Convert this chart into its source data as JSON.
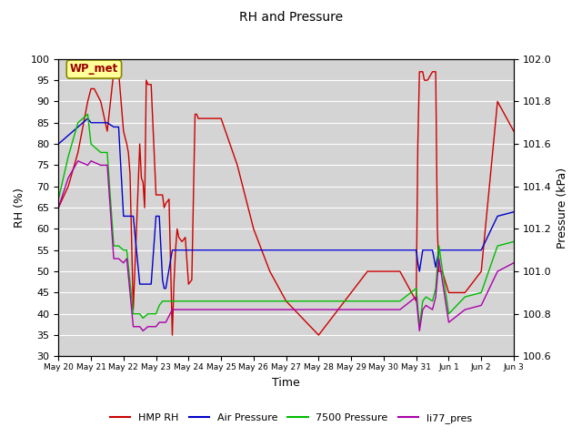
{
  "title": "RH and Pressure",
  "xlabel": "Time",
  "ylabel_left": "RH (%)",
  "ylabel_right": "Pressure (kPa)",
  "ylim_left": [
    30,
    100
  ],
  "ylim_right": [
    100.6,
    102.0
  ],
  "annotation_text": "WP_met",
  "fig_bg_color": "#ffffff",
  "plot_bg_color": "#d4d4d4",
  "grid_color": "#ffffff",
  "x_ticks": [
    "May 20",
    "May 21",
    "May 22",
    "May 23",
    "May 24",
    "May 25",
    "May 26",
    "May 27",
    "May 28",
    "May 29",
    "May 30",
    "May 31",
    "Jun 1",
    "Jun 2",
    "Jun 3"
  ],
  "hmp_rh": {
    "color": "#cc0000",
    "label": "HMP RH",
    "x": [
      0.0,
      0.3,
      0.6,
      0.9,
      1.0,
      1.1,
      1.3,
      1.5,
      1.7,
      1.85,
      2.0,
      2.1,
      2.15,
      2.2,
      2.3,
      2.4,
      2.5,
      2.55,
      2.6,
      2.65,
      2.7,
      2.75,
      2.85,
      3.0,
      3.1,
      3.15,
      3.2,
      3.25,
      3.3,
      3.4,
      3.5,
      3.55,
      3.6,
      3.65,
      3.7,
      3.8,
      3.9,
      4.0,
      4.1,
      4.2,
      4.25,
      4.3,
      4.5,
      5.0,
      5.5,
      6.0,
      6.5,
      7.0,
      7.5,
      8.0,
      8.5,
      9.0,
      9.5,
      10.0,
      10.5,
      11.0,
      11.05,
      11.1,
      11.15,
      11.2,
      11.25,
      11.3,
      11.35,
      11.5,
      11.6,
      11.65,
      11.7,
      11.8,
      12.0,
      12.2,
      12.5,
      13.0,
      13.5,
      14.0
    ],
    "y": [
      65,
      70,
      78,
      90,
      93,
      93,
      90,
      83,
      97,
      97,
      83,
      80,
      78,
      73,
      41,
      60,
      80,
      72,
      71,
      65,
      95,
      94,
      94,
      68,
      68,
      68,
      68,
      65,
      66,
      67,
      35,
      47,
      55,
      60,
      58,
      57,
      58,
      47,
      48,
      87,
      87,
      86,
      86,
      86,
      75,
      60,
      50,
      43,
      39,
      35,
      40,
      45,
      50,
      50,
      50,
      43,
      80,
      97,
      97,
      97,
      95,
      95,
      95,
      97,
      97,
      60,
      50,
      50,
      45,
      45,
      45,
      50,
      90,
      83
    ]
  },
  "air_pressure": {
    "color": "#0000cc",
    "label": "Air Pressure",
    "x": [
      0.0,
      0.3,
      0.6,
      0.9,
      1.0,
      1.3,
      1.5,
      1.7,
      1.85,
      2.0,
      2.1,
      2.3,
      2.5,
      2.6,
      2.75,
      2.85,
      3.0,
      3.1,
      3.2,
      3.25,
      3.3,
      3.5,
      3.6,
      3.7,
      3.8,
      4.0,
      4.5,
      5.0,
      6.0,
      7.0,
      8.0,
      9.0,
      10.0,
      10.5,
      11.0,
      11.05,
      11.1,
      11.2,
      11.3,
      11.5,
      11.6,
      11.7,
      12.0,
      12.5,
      13.0,
      13.5,
      14.0
    ],
    "y": [
      80,
      82,
      84,
      86,
      85,
      85,
      85,
      84,
      84,
      63,
      63,
      63,
      47,
      47,
      47,
      47,
      63,
      63,
      48,
      46,
      46,
      55,
      55,
      55,
      55,
      55,
      55,
      55,
      55,
      55,
      55,
      55,
      55,
      55,
      55,
      52,
      50,
      55,
      55,
      55,
      51,
      55,
      55,
      55,
      55,
      63,
      64
    ]
  },
  "pressure_7500": {
    "color": "#00bb00",
    "label": "7500 Pressure",
    "x": [
      0.0,
      0.3,
      0.6,
      0.9,
      1.0,
      1.3,
      1.5,
      1.7,
      1.85,
      2.0,
      2.1,
      2.3,
      2.5,
      2.6,
      2.75,
      2.85,
      3.0,
      3.1,
      3.2,
      3.3,
      3.5,
      3.6,
      3.8,
      4.0,
      4.5,
      5.0,
      6.0,
      7.0,
      8.0,
      9.0,
      10.0,
      10.5,
      11.0,
      11.1,
      11.2,
      11.3,
      11.5,
      11.6,
      11.7,
      12.0,
      12.5,
      13.0,
      13.5,
      14.0
    ],
    "y": [
      67,
      77,
      85,
      87,
      80,
      78,
      78,
      56,
      56,
      55,
      55,
      40,
      40,
      39,
      40,
      40,
      40,
      42,
      43,
      43,
      43,
      43,
      43,
      43,
      43,
      43,
      43,
      43,
      43,
      43,
      43,
      43,
      46,
      37,
      43,
      44,
      43,
      46,
      56,
      40,
      44,
      45,
      56,
      57
    ]
  },
  "li77_pres": {
    "color": "#aa00aa",
    "label": "li77_pres",
    "x": [
      0.0,
      0.3,
      0.6,
      0.9,
      1.0,
      1.3,
      1.5,
      1.7,
      1.85,
      2.0,
      2.1,
      2.3,
      2.5,
      2.6,
      2.75,
      2.85,
      3.0,
      3.1,
      3.2,
      3.3,
      3.5,
      3.6,
      3.8,
      4.0,
      4.5,
      5.0,
      6.0,
      7.0,
      8.0,
      9.0,
      10.0,
      10.5,
      11.0,
      11.1,
      11.2,
      11.3,
      11.5,
      11.6,
      11.7,
      12.0,
      12.5,
      13.0,
      13.5,
      14.0
    ],
    "y": [
      65,
      72,
      76,
      75,
      76,
      75,
      75,
      53,
      53,
      52,
      53,
      37,
      37,
      36,
      37,
      37,
      37,
      38,
      38,
      38,
      41,
      41,
      41,
      41,
      41,
      41,
      41,
      41,
      41,
      41,
      41,
      41,
      44,
      36,
      41,
      42,
      41,
      44,
      53,
      38,
      41,
      42,
      50,
      52
    ]
  }
}
